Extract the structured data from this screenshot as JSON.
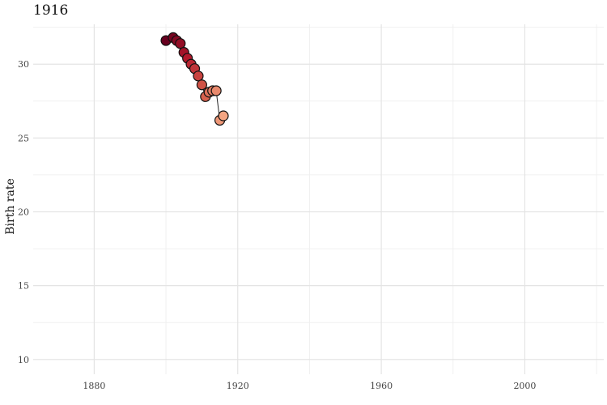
{
  "chart_data": {
    "type": "scatter",
    "title": "1916",
    "xlabel": "",
    "ylabel": "Birth rate",
    "xlim": [
      1863,
      2022
    ],
    "ylim": [
      9,
      32.7
    ],
    "x_ticks": [
      1880,
      1920,
      1960,
      2000
    ],
    "y_ticks": [
      10,
      15,
      20,
      25,
      30
    ],
    "grid": true,
    "connected_line": true,
    "point_color_scale": [
      "#67001f",
      "#b2182b",
      "#d6604d",
      "#f4a582"
    ],
    "points": [
      {
        "x": 1900,
        "y": 31.6
      },
      {
        "x": 1902,
        "y": 31.8
      },
      {
        "x": 1903,
        "y": 31.6
      },
      {
        "x": 1904,
        "y": 31.4
      },
      {
        "x": 1905,
        "y": 30.8
      },
      {
        "x": 1906,
        "y": 30.4
      },
      {
        "x": 1907,
        "y": 30.0
      },
      {
        "x": 1908,
        "y": 29.7
      },
      {
        "x": 1909,
        "y": 29.2
      },
      {
        "x": 1910,
        "y": 28.6
      },
      {
        "x": 1911,
        "y": 27.8
      },
      {
        "x": 1912,
        "y": 28.1
      },
      {
        "x": 1913,
        "y": 28.2
      },
      {
        "x": 1914,
        "y": 28.2
      },
      {
        "x": 1915,
        "y": 26.2
      },
      {
        "x": 1916,
        "y": 26.5
      }
    ]
  }
}
